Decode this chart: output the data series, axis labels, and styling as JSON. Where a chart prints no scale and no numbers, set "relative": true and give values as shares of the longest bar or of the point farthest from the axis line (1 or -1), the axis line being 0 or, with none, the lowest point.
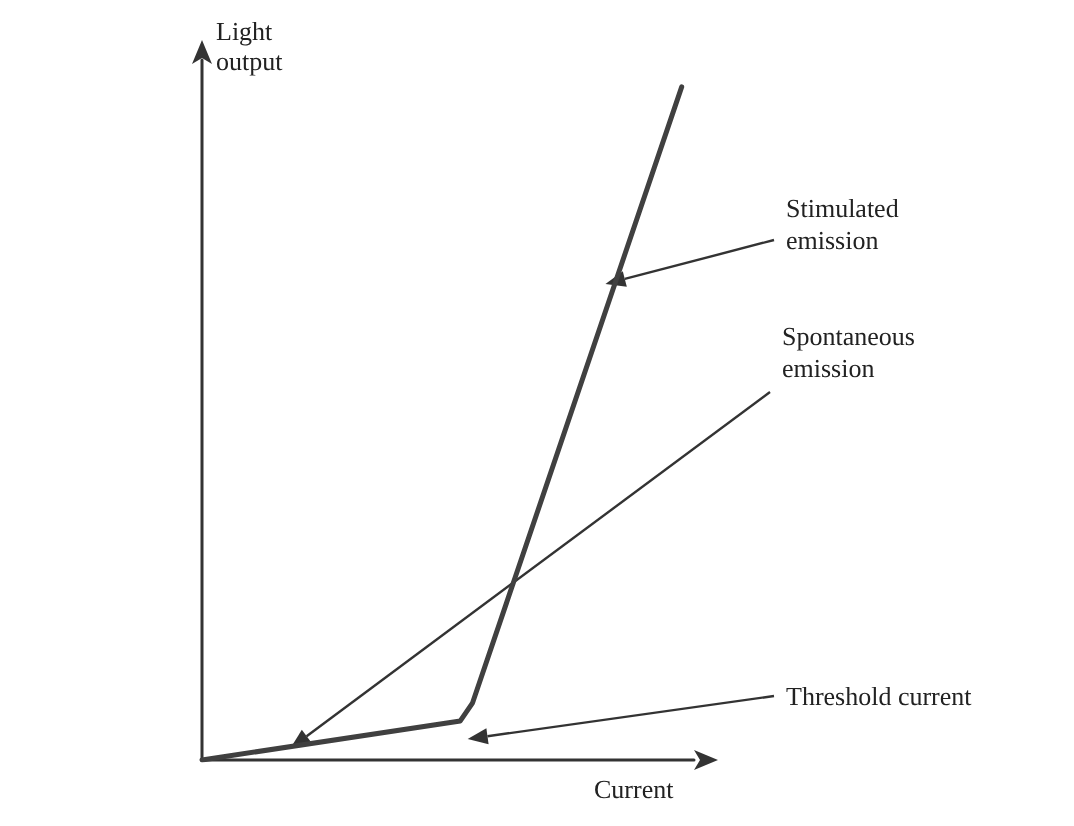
{
  "chart_data": {
    "type": "line",
    "relative": true,
    "xlabel": "Current",
    "ylabel": "Light output",
    "categories": [
      null,
      null,
      null,
      null,
      null,
      null,
      null,
      null,
      null,
      null,
      null,
      null,
      null,
      null,
      null,
      null,
      null,
      null,
      null,
      null,
      null,
      null,
      null,
      null,
      null,
      null,
      null,
      null,
      null,
      null,
      null,
      null,
      null,
      null,
      null,
      null,
      null,
      null,
      null,
      null,
      null
    ],
    "values": [
      0,
      null,
      null,
      null,
      null,
      null,
      null,
      null,
      null,
      null,
      null,
      null,
      null,
      null,
      null,
      null,
      null,
      null,
      null,
      null,
      null,
      0.058,
      0.085,
      null,
      null,
      null,
      null,
      null,
      null,
      null,
      null,
      null,
      null,
      null,
      null,
      null,
      null,
      null,
      null,
      1,
      null
    ],
    "color": "#404040",
    "grid": false,
    "marker": "none",
    "line_style": "solid",
    "annotations": [
      "Stimulated\nemission",
      "Spontaneous\nemission",
      "Threshold current"
    ]
  }
}
